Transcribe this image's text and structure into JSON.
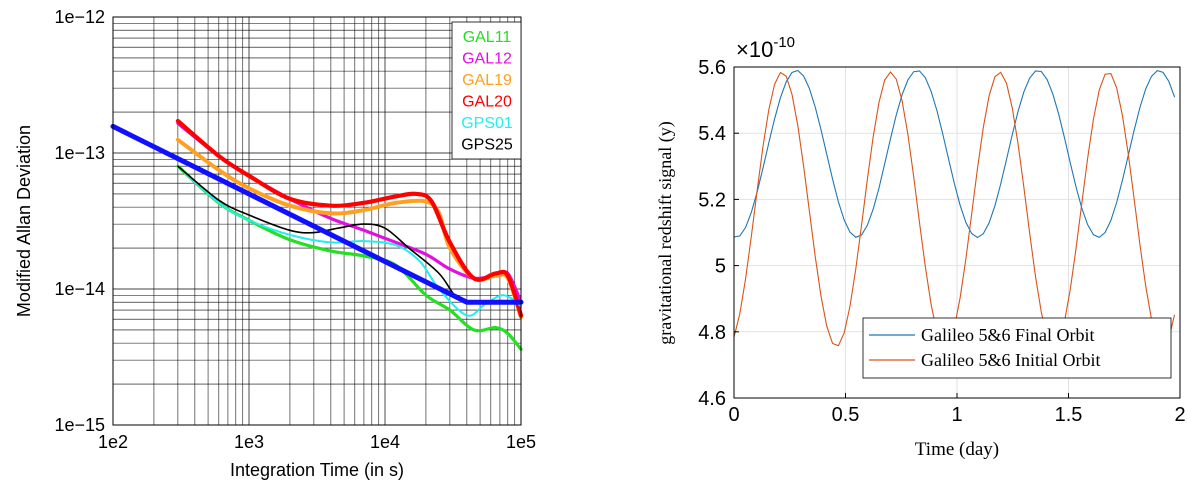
{
  "chart_data": [
    {
      "type": "line",
      "xlabel": "Integration Time (in s)",
      "ylabel": "Modified Allan Deviation",
      "x_scale": "log",
      "y_scale": "log",
      "xlim": [
        100,
        100000
      ],
      "ylim": [
        1e-15,
        1e-12
      ],
      "x_ticks": [
        {
          "value": 100,
          "label": "1e2"
        },
        {
          "value": 1000,
          "label": "1e3"
        },
        {
          "value": 10000,
          "label": "1e4"
        },
        {
          "value": 100000,
          "label": "1e5"
        }
      ],
      "y_ticks": [
        {
          "value": 1e-15,
          "label": "1e−15"
        },
        {
          "value": 1e-14,
          "label": "1e−14"
        },
        {
          "value": 1e-13,
          "label": "1e−13"
        },
        {
          "value": 1e-12,
          "label": "1e−12"
        }
      ],
      "grid": true,
      "legend_position": "top-right",
      "series": [
        {
          "name": "GAL11",
          "color": "#22e022",
          "x": [
            300,
            600,
            1000,
            2000,
            4000,
            7000,
            12000,
            20000,
            30000,
            45000,
            65000,
            80000,
            100000
          ],
          "y": [
            8e-14,
            4.3e-14,
            3.2e-14,
            2.3e-14,
            1.9e-14,
            1.75e-14,
            1.5e-14,
            9e-15,
            7e-15,
            5e-15,
            5.2e-15,
            4.7e-15,
            3.6e-15
          ]
        },
        {
          "name": "GAL12",
          "color": "#e010e0",
          "x": [
            300,
            600,
            1000,
            2000,
            4000,
            7000,
            12000,
            20000,
            30000,
            45000,
            65000,
            80000,
            100000
          ],
          "y": [
            1.65e-13,
            9.5e-14,
            6.8e-14,
            4.6e-14,
            3.3e-14,
            2.7e-14,
            2.2e-14,
            1.8e-14,
            1.4e-14,
            1.2e-14,
            1.25e-14,
            1.3e-14,
            8e-15
          ]
        },
        {
          "name": "GAL19",
          "color": "#ffa020",
          "x": [
            300,
            600,
            1000,
            2000,
            4000,
            7000,
            12000,
            20000,
            25000,
            30000,
            45000,
            65000,
            80000,
            100000
          ],
          "y": [
            1.25e-13,
            7.5e-14,
            5.5e-14,
            4.1e-14,
            3.6e-14,
            3.8e-14,
            4.3e-14,
            4.4e-14,
            3.6e-14,
            2e-14,
            1.2e-14,
            1.25e-14,
            1.2e-14,
            6.2e-15
          ]
        },
        {
          "name": "GAL20",
          "color": "#ff0000",
          "x": [
            300,
            600,
            1000,
            2000,
            4000,
            7000,
            12000,
            17000,
            22000,
            30000,
            45000,
            65000,
            80000,
            100000
          ],
          "y": [
            1.72e-13,
            9.5e-14,
            6.8e-14,
            4.6e-14,
            4.1e-14,
            4.3e-14,
            4.8e-14,
            5e-14,
            4.4e-14,
            2.2e-14,
            1.2e-14,
            1.3e-14,
            1.25e-14,
            6.4e-15
          ]
        },
        {
          "name": "GPS01",
          "color": "#22eeee",
          "x": [
            300,
            600,
            1000,
            2000,
            4000,
            7000,
            12000,
            18000,
            25000,
            40000,
            55000,
            75000,
            100000
          ],
          "y": [
            8e-14,
            4.3e-14,
            3.2e-14,
            2.5e-14,
            2.2e-14,
            2.25e-14,
            2.1e-14,
            1.6e-14,
            1e-14,
            6.4e-15,
            7.8e-15,
            9e-15,
            7.5e-15
          ]
        },
        {
          "name": "GPS25",
          "color": "#000000",
          "x": [
            300,
            600,
            1000,
            2000,
            3000,
            4500,
            7000,
            10000,
            15000,
            25000,
            35000,
            50000,
            70000,
            100000
          ],
          "y": [
            8e-14,
            4.5e-14,
            3.5e-14,
            2.7e-14,
            2.6e-14,
            2.8e-14,
            3e-14,
            2.8e-14,
            2e-14,
            1.3e-14,
            8.3e-15,
            8.1e-15,
            8.2e-15,
            8e-15
          ]
        },
        {
          "name": "",
          "color": "#1010ff",
          "x": [
            100,
            40000,
            100000
          ],
          "y": [
            1.57e-13,
            8e-15,
            8e-15
          ]
        }
      ]
    },
    {
      "type": "line",
      "xlabel": "Time (day)",
      "ylabel": "gravitational redshift signal (y)",
      "y_multiplier": "×10",
      "y_multiplier_exponent": "-10",
      "xlim": [
        0,
        2
      ],
      "ylim": [
        4.6,
        5.6
      ],
      "x_ticks": [
        {
          "value": 0,
          "label": "0"
        },
        {
          "value": 0.5,
          "label": "0.5"
        },
        {
          "value": 1,
          "label": "1"
        },
        {
          "value": 1.5,
          "label": "1.5"
        },
        {
          "value": 2,
          "label": "2"
        }
      ],
      "y_ticks": [
        {
          "value": 4.6,
          "label": "4.6"
        },
        {
          "value": 4.8,
          "label": "4.8"
        },
        {
          "value": 5.0,
          "label": "5"
        },
        {
          "value": 5.2,
          "label": "5.2"
        },
        {
          "value": 5.4,
          "label": "5.4"
        },
        {
          "value": 5.6,
          "label": "5.6"
        }
      ],
      "grid": true,
      "legend_position": "bottom-right",
      "series": [
        {
          "name": "Galileo 5&6 Final Orbit",
          "color": "#1f77b4",
          "period_days": 0.5416,
          "y_max": 5.59,
          "y_min": 5.085,
          "peak_times": [
            0.28,
            0.8216,
            1.3632,
            1.9048
          ]
        },
        {
          "name": "Galileo 5&6 Initial Orbit",
          "color": "#d95319",
          "period_days": 0.4877,
          "y_max": 5.585,
          "y_min": 4.755,
          "peak_times": [
            0.215,
            0.7027,
            1.1904,
            1.6781
          ]
        }
      ]
    }
  ]
}
